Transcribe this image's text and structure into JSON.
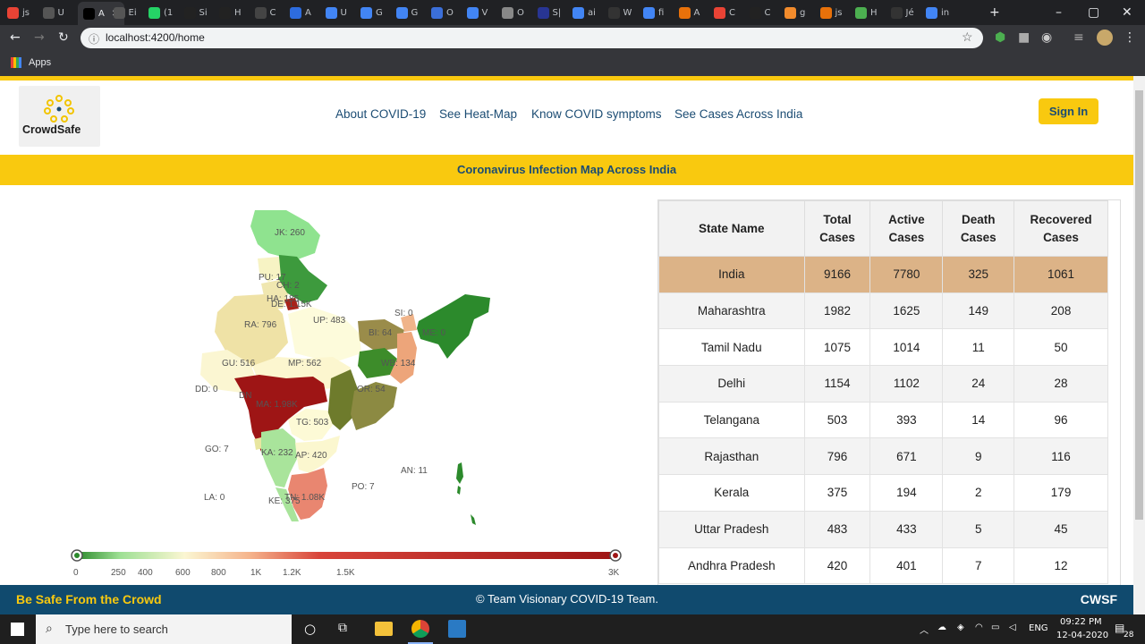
{
  "browser": {
    "tabs": [
      "js",
      "U",
      "A",
      "Ei",
      "(1",
      "Si",
      "H",
      "C",
      "A",
      "U",
      "G",
      "G",
      "O",
      "V",
      "O",
      "S|",
      "ai",
      "W",
      "fi",
      "A",
      "C",
      "C",
      "g",
      "js",
      "H",
      "Jé",
      "in"
    ],
    "active_tab_index": 2,
    "url": "localhost:4200/home",
    "bookmarks_label": "Apps"
  },
  "site": {
    "logo_text": "CrowdSafe",
    "nav": [
      "About COVID-19",
      "See Heat-Map",
      "Know COVID symptoms",
      "See Cases Across India"
    ],
    "signin": "Sign In",
    "banner": "Coronavirus Infection Map Across India"
  },
  "map": {
    "labels": [
      {
        "text": "JK: 260"
      },
      {
        "text": "PU: 17"
      },
      {
        "text": "CH: 2"
      },
      {
        "text": "HA: 185"
      },
      {
        "text": "DE: 1.15K"
      },
      {
        "text": "UP: 483"
      },
      {
        "text": "RA: 796"
      },
      {
        "text": "SI: 0"
      },
      {
        "text": "BI: 64"
      },
      {
        "text": "ME: 0"
      },
      {
        "text": "GU: 516"
      },
      {
        "text": "MP: 562"
      },
      {
        "text": "WB: 134"
      },
      {
        "text": "DD: 0"
      },
      {
        "text": "DN"
      },
      {
        "text": "OR: 54"
      },
      {
        "text": "MA: 1.98K"
      },
      {
        "text": "TG: 503"
      },
      {
        "text": "GO: 7"
      },
      {
        "text": "KA: 232"
      },
      {
        "text": "AP: 420"
      },
      {
        "text": "AN: 11"
      },
      {
        "text": "PO: 7"
      },
      {
        "text": "LA: 0"
      },
      {
        "text": "TN: 1.08K"
      },
      {
        "text": "KE: 375"
      }
    ],
    "scale_ticks": [
      "0",
      "250",
      "400",
      "600",
      "800",
      "1K",
      "1.2K",
      "1.5K",
      "3K"
    ]
  },
  "table": {
    "headers": [
      "State Name",
      "Total Cases",
      "Active Cases",
      "Death Cases",
      "Recovered Cases"
    ],
    "rows": [
      [
        "India",
        "9166",
        "7780",
        "325",
        "1061"
      ],
      [
        "Maharashtra",
        "1982",
        "1625",
        "149",
        "208"
      ],
      [
        "Tamil Nadu",
        "1075",
        "1014",
        "11",
        "50"
      ],
      [
        "Delhi",
        "1154",
        "1102",
        "24",
        "28"
      ],
      [
        "Telangana",
        "503",
        "393",
        "14",
        "96"
      ],
      [
        "Rajasthan",
        "796",
        "671",
        "9",
        "116"
      ],
      [
        "Kerala",
        "375",
        "194",
        "2",
        "179"
      ],
      [
        "Uttar Pradesh",
        "483",
        "433",
        "5",
        "45"
      ],
      [
        "Andhra Pradesh",
        "420",
        "401",
        "7",
        "12"
      ]
    ]
  },
  "footer": {
    "left": "Be Safe From the Crowd",
    "center": "© Team Visionary COVID-19 Team.",
    "right": "CWSF"
  },
  "taskbar": {
    "search_placeholder": "Type here to search",
    "lang": "ENG",
    "time": "09:22 PM",
    "date": "12-04-2020",
    "notif": "28"
  },
  "colors": {
    "accent": "#f9c90f",
    "navy": "#1b4c73",
    "footer": "#104a6e",
    "highlight": "#dcb387"
  }
}
